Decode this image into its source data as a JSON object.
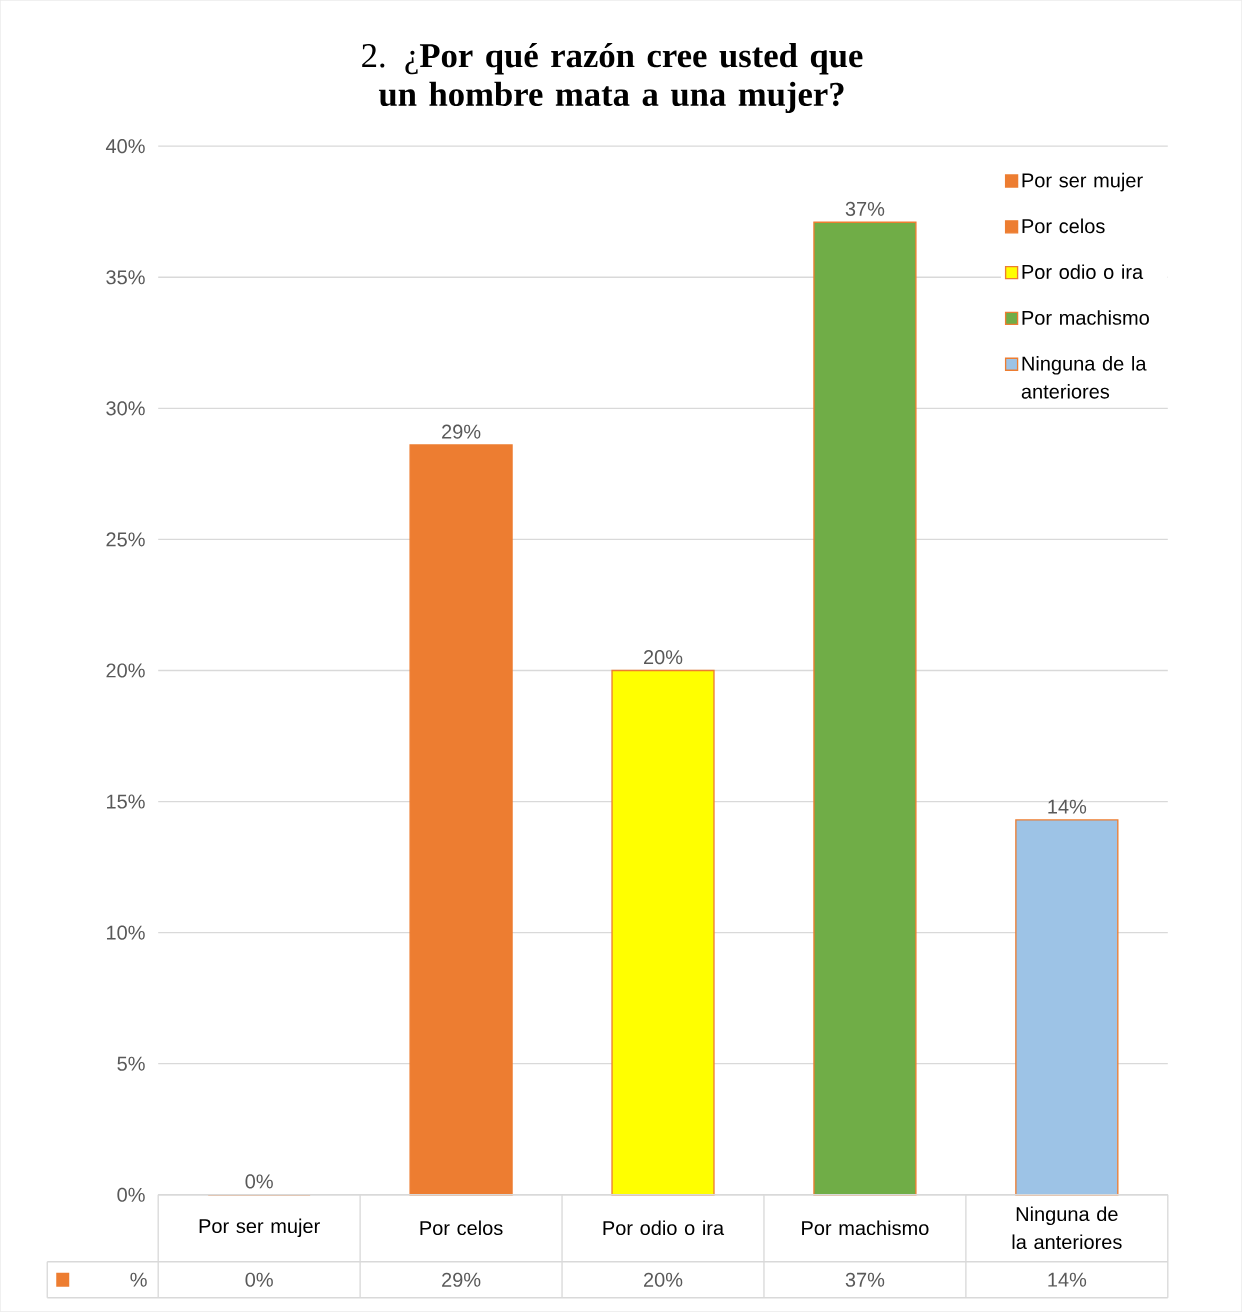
{
  "chart_data": {
    "type": "bar",
    "title": "2. ¿**Por qué razón cree usted que un hombre mata a una mujer?**",
    "categories": [
      "Por ser mujer",
      "Por celos",
      "Por odio o ira",
      "Por machismo",
      "Ninguna de la anteriores"
    ],
    "series": [
      {
        "name": "Por ser mujer",
        "color": "#ed7d31",
        "values": [
          0,
          null,
          null,
          null,
          null
        ],
        "value_labels": [
          "0%",
          null,
          null,
          null,
          null
        ]
      },
      {
        "name": "Por celos",
        "color": "#ed7d31",
        "values": [
          null,
          28.6,
          null,
          null,
          null
        ],
        "value_labels": [
          null,
          "29%",
          null,
          null,
          null
        ]
      },
      {
        "name": "Por odio o ira",
        "color": "#ffff00",
        "values": [
          null,
          null,
          20,
          null,
          null
        ],
        "value_labels": [
          null,
          null,
          "20%",
          null,
          null
        ]
      },
      {
        "name": "Por machismo",
        "color": "#70ad47",
        "values": [
          null,
          null,
          null,
          37.1,
          null
        ],
        "value_labels": [
          null,
          null,
          null,
          "37%",
          null
        ]
      },
      {
        "name": "Ninguna de la anteriores",
        "color": "#9dc3e6",
        "values": [
          null,
          null,
          null,
          null,
          14.3
        ],
        "value_labels": [
          null,
          null,
          null,
          null,
          "14%"
        ]
      }
    ],
    "annotations": [
      "%"
    ],
    "ylim": [
      0,
      40
    ],
    "yticks": [
      {
        "value": 0,
        "label": "0%"
      },
      {
        "value": 5,
        "label": "5%"
      },
      {
        "value": 10,
        "label": "10%"
      },
      {
        "value": 15,
        "label": "15%"
      },
      {
        "value": 20,
        "label": "20%"
      },
      {
        "value": 25,
        "label": "25%"
      },
      {
        "value": 30,
        "label": "30%"
      },
      {
        "value": 35,
        "label": "35%"
      },
      {
        "value": 40,
        "label": "40%"
      }
    ],
    "grid": "y",
    "legend": "top right"
  }
}
